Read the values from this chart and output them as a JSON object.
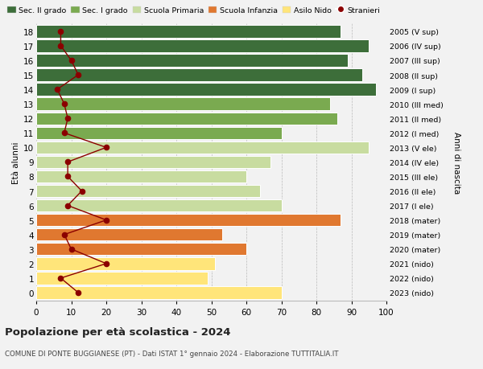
{
  "ages": [
    0,
    1,
    2,
    3,
    4,
    5,
    6,
    7,
    8,
    9,
    10,
    11,
    12,
    13,
    14,
    15,
    16,
    17,
    18
  ],
  "right_labels": [
    "2023 (nido)",
    "2022 (nido)",
    "2021 (nido)",
    "2020 (mater)",
    "2019 (mater)",
    "2018 (mater)",
    "2017 (I ele)",
    "2016 (II ele)",
    "2015 (III ele)",
    "2014 (IV ele)",
    "2013 (V ele)",
    "2012 (I med)",
    "2011 (II med)",
    "2010 (III med)",
    "2009 (I sup)",
    "2008 (II sup)",
    "2007 (III sup)",
    "2006 (IV sup)",
    "2005 (V sup)"
  ],
  "bar_values": [
    70,
    49,
    51,
    60,
    53,
    87,
    70,
    64,
    60,
    67,
    95,
    70,
    86,
    84,
    97,
    93,
    89,
    95,
    87
  ],
  "bar_colors": [
    "#FFE57A",
    "#FFE57A",
    "#FFE57A",
    "#E07830",
    "#E07830",
    "#E07830",
    "#C8DCA0",
    "#C8DCA0",
    "#C8DCA0",
    "#C8DCA0",
    "#C8DCA0",
    "#7AAA50",
    "#7AAA50",
    "#7AAA50",
    "#3D6E3A",
    "#3D6E3A",
    "#3D6E3A",
    "#3D6E3A",
    "#3D6E3A"
  ],
  "stranieri_values": [
    12,
    7,
    20,
    10,
    8,
    20,
    9,
    13,
    9,
    9,
    20,
    8,
    9,
    8,
    6,
    12,
    10,
    7,
    7
  ],
  "title_main": "Popolazione per età scolastica - 2024",
  "title_sub": "COMUNE DI PONTE BUGGIANESE (PT) - Dati ISTAT 1° gennaio 2024 - Elaborazione TUTTITALIA.IT",
  "ylabel": "Età alunni",
  "ylabel2": "Anni di nascita",
  "xlim": [
    0,
    100
  ],
  "xticks": [
    0,
    10,
    20,
    30,
    40,
    50,
    60,
    70,
    80,
    90,
    100
  ],
  "legend_labels": [
    "Sec. II grado",
    "Sec. I grado",
    "Scuola Primaria",
    "Scuola Infanzia",
    "Asilo Nido",
    "Stranieri"
  ],
  "legend_colors": [
    "#3D6E3A",
    "#7AAA50",
    "#C8DCA0",
    "#E07830",
    "#FFE57A",
    "#8B0000"
  ],
  "color_stranieri": "#8B0000",
  "bg_color": "#F2F2F2",
  "bar_height": 0.85
}
